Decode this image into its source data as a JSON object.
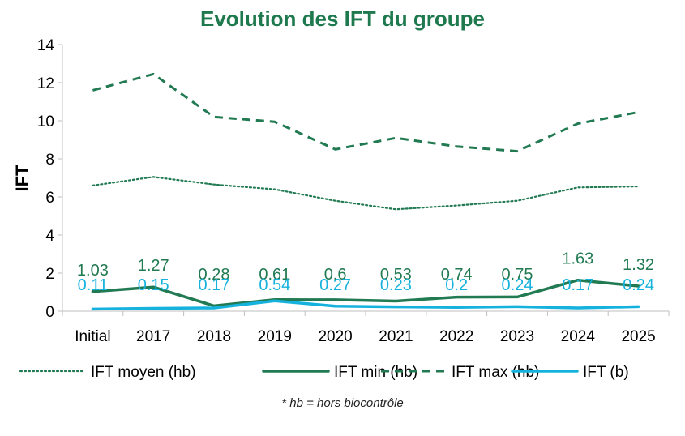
{
  "colors": {
    "title": "#1e7a4e",
    "dark_green": "#217a52",
    "light_blue": "#16b2de",
    "axis": "#bfbfbf",
    "text": "#000000"
  },
  "chart_data": {
    "type": "line",
    "title": "Evolution des IFT du groupe",
    "ylabel": "IFT",
    "xlabel": "",
    "ylim": [
      0,
      14
    ],
    "yticks": [
      0,
      2,
      4,
      6,
      8,
      10,
      12,
      14
    ],
    "grid": false,
    "legend_position": "bottom",
    "categories": [
      "Initial",
      "2017",
      "2018",
      "2019",
      "2020",
      "2021",
      "2022",
      "2023",
      "2024",
      "2025"
    ],
    "series": [
      {
        "name": "IFT moyen (hb)",
        "style": "dotted",
        "color": "#217a52",
        "values": [
          6.6,
          7.05,
          6.65,
          6.4,
          5.8,
          5.35,
          5.55,
          5.8,
          6.5,
          6.55
        ],
        "labels": false
      },
      {
        "name": "IFT min (hb)",
        "style": "solid",
        "color": "#217a52",
        "values": [
          1.03,
          1.27,
          0.28,
          0.61,
          0.6,
          0.53,
          0.74,
          0.75,
          1.63,
          1.32
        ],
        "labels": true
      },
      {
        "name": "IFT max (hb)",
        "style": "dashed",
        "color": "#217a52",
        "values": [
          11.6,
          12.45,
          10.2,
          9.95,
          8.5,
          9.1,
          8.65,
          8.4,
          9.85,
          10.45
        ],
        "labels": false
      },
      {
        "name": "IFT (b)",
        "style": "solid",
        "color": "#16b2de",
        "values": [
          0.11,
          0.15,
          0.17,
          0.54,
          0.27,
          0.23,
          0.2,
          0.24,
          0.17,
          0.24
        ],
        "labels": true
      }
    ],
    "footnote": "* hb = hors biocontrôle"
  }
}
